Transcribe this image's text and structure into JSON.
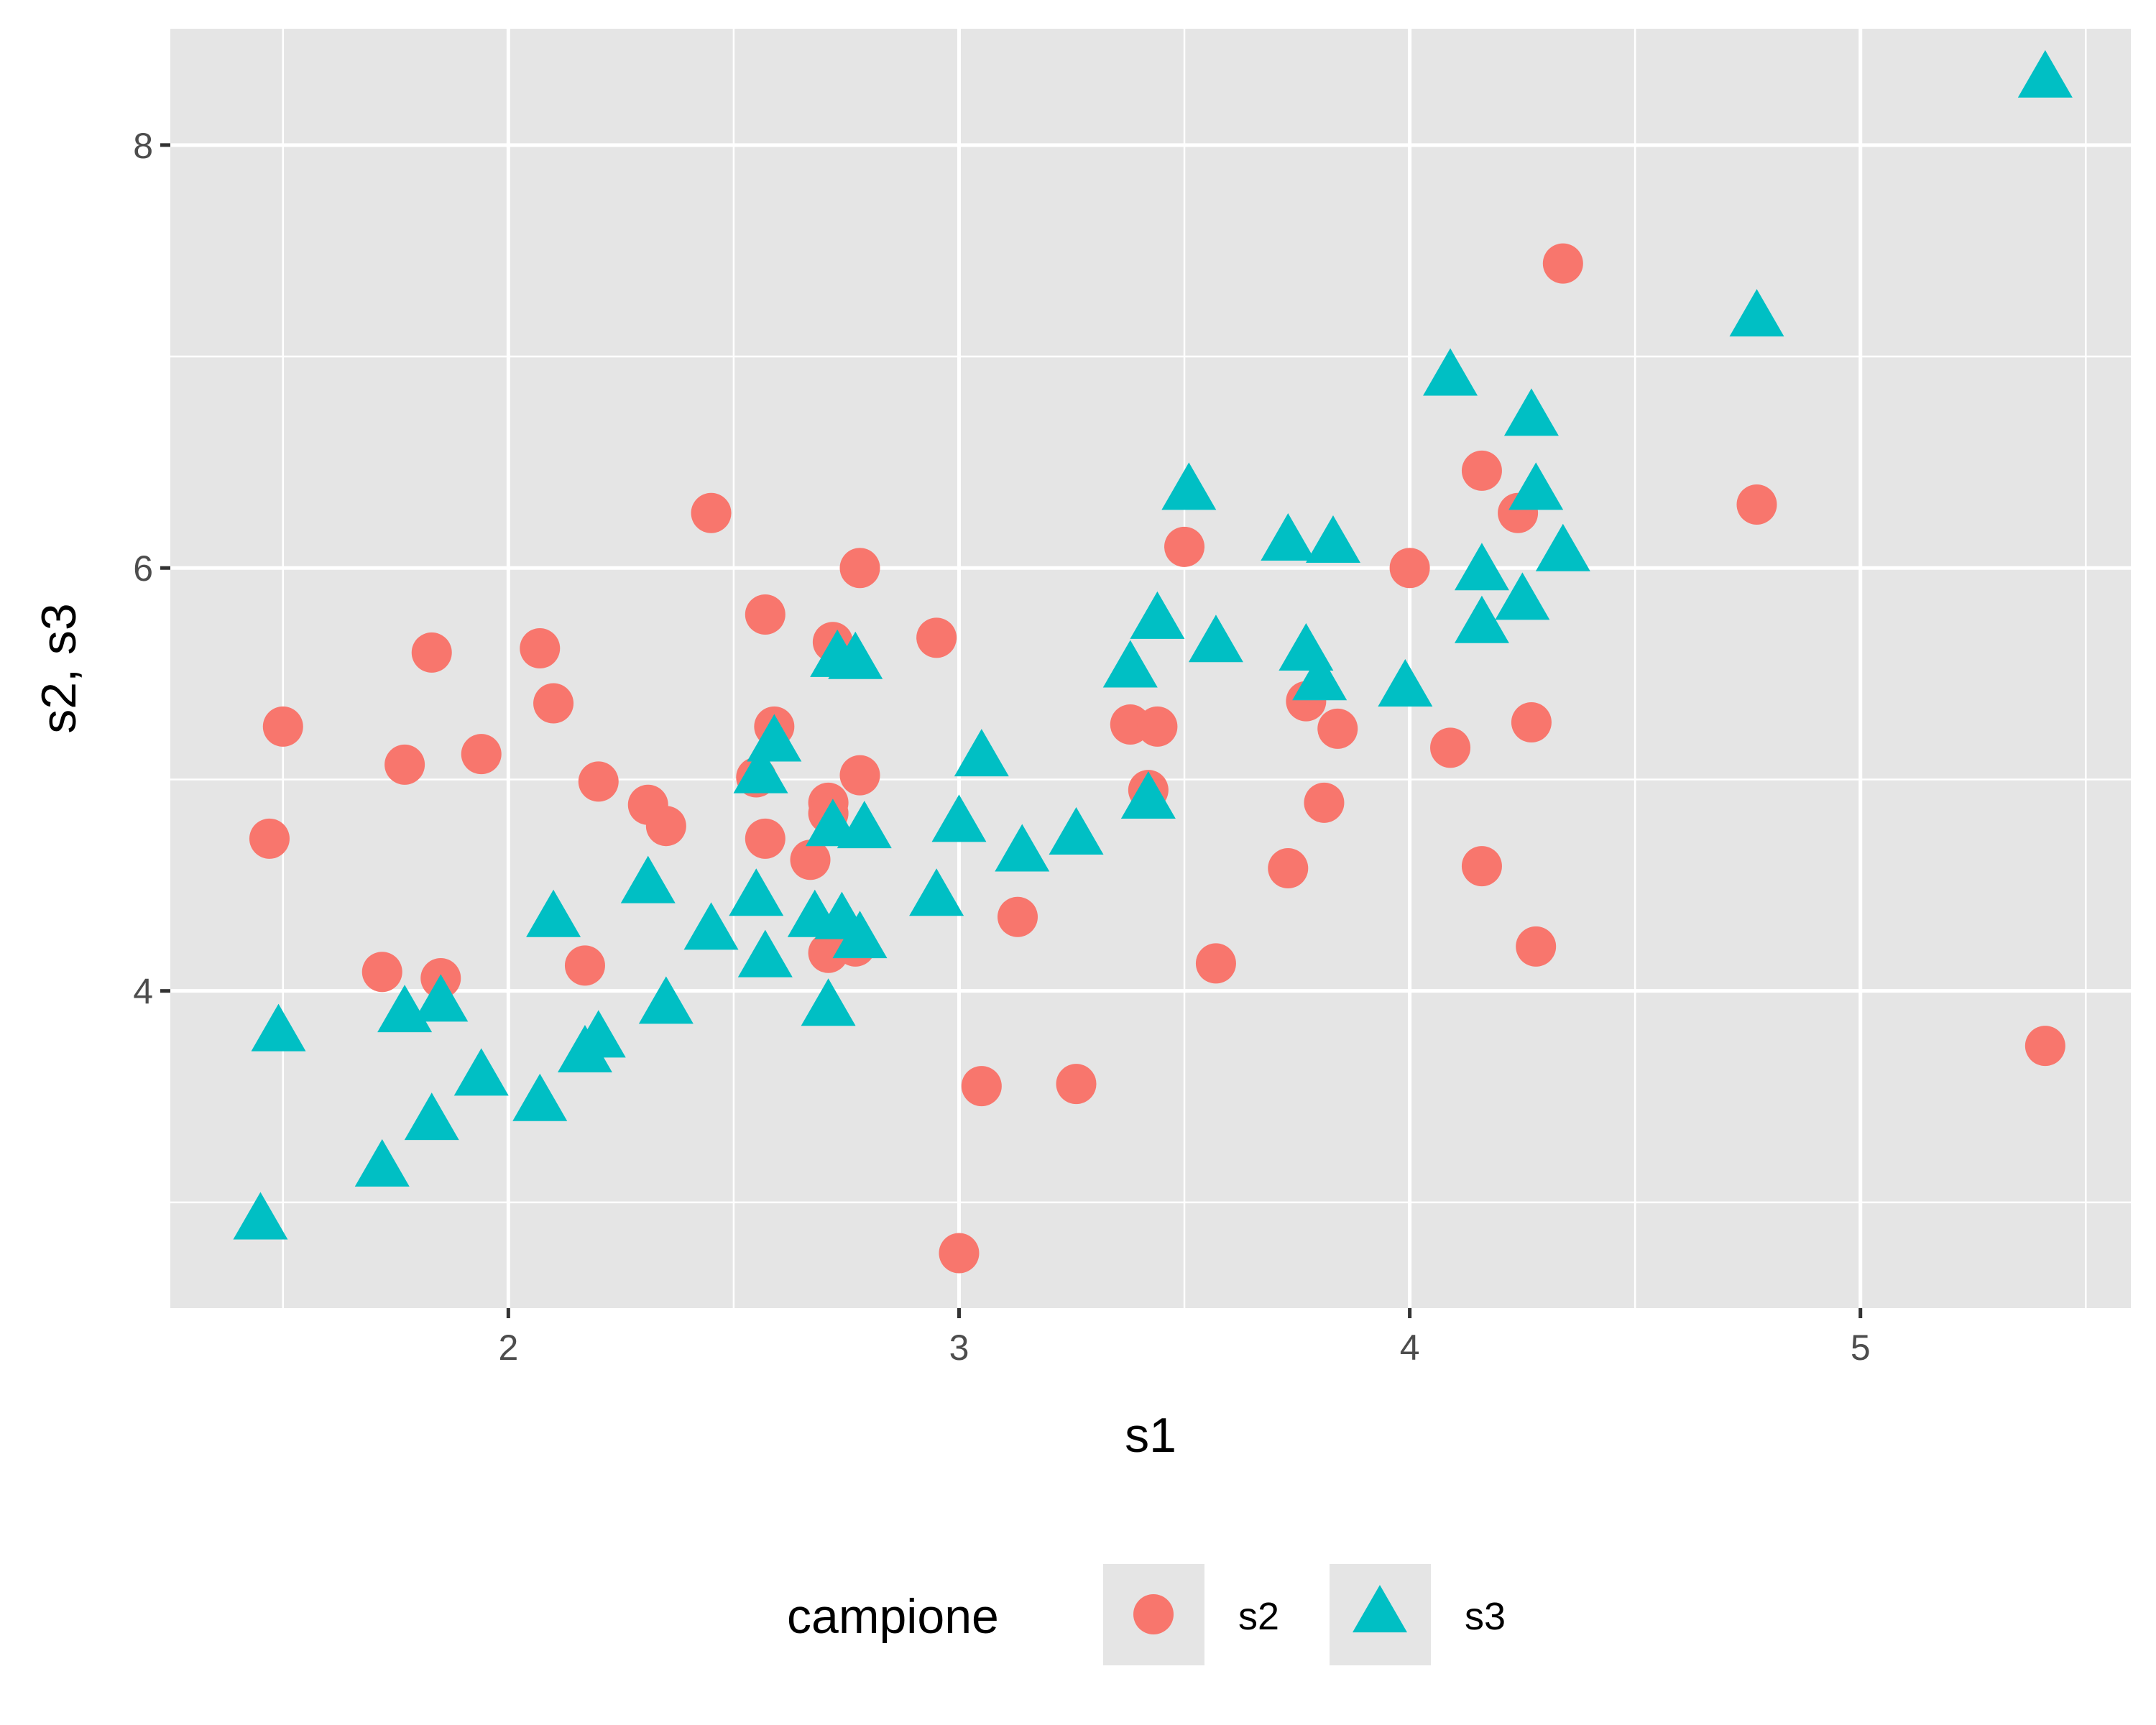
{
  "chart_data": {
    "type": "scatter",
    "xlabel": "s1",
    "ylabel": "s2, s3",
    "xlim": [
      1.25,
      5.6
    ],
    "ylim": [
      2.5,
      8.55
    ],
    "x_ticks": [
      2,
      3,
      4,
      5
    ],
    "y_ticks": [
      4,
      6,
      8
    ],
    "grid": true,
    "background": "#e5e5e5",
    "legend": {
      "title": "campione",
      "position": "bottom",
      "entries": [
        {
          "label": "s2",
          "shape": "circle",
          "color": "#f8766d"
        },
        {
          "label": "s3",
          "shape": "triangle",
          "color": "#00bfc4"
        }
      ]
    },
    "series": [
      {
        "name": "s2",
        "shape": "circle",
        "color": "#f8766d",
        "points": [
          [
            1.47,
            4.72
          ],
          [
            1.5,
            5.25
          ],
          [
            1.72,
            4.09
          ],
          [
            1.77,
            5.07
          ],
          [
            1.83,
            5.6
          ],
          [
            1.85,
            4.06
          ],
          [
            1.94,
            5.12
          ],
          [
            2.07,
            5.62
          ],
          [
            2.1,
            5.36
          ],
          [
            2.17,
            4.12
          ],
          [
            2.2,
            4.99
          ],
          [
            2.31,
            4.88
          ],
          [
            2.35,
            4.78
          ],
          [
            2.45,
            6.26
          ],
          [
            2.55,
            5.01
          ],
          [
            2.57,
            5.78
          ],
          [
            2.57,
            4.72
          ],
          [
            2.59,
            5.25
          ],
          [
            2.67,
            4.62
          ],
          [
            2.71,
            4.89
          ],
          [
            2.71,
            4.84
          ],
          [
            2.72,
            5.65
          ],
          [
            2.71,
            4.18
          ],
          [
            2.78,
            6.0
          ],
          [
            2.78,
            5.02
          ],
          [
            2.77,
            4.21
          ],
          [
            2.95,
            5.67
          ],
          [
            3.0,
            2.76
          ],
          [
            3.05,
            3.55
          ],
          [
            3.13,
            4.35
          ],
          [
            3.26,
            3.56
          ],
          [
            3.38,
            5.26
          ],
          [
            3.42,
            4.95
          ],
          [
            3.44,
            5.25
          ],
          [
            3.5,
            6.1
          ],
          [
            3.57,
            4.13
          ],
          [
            3.73,
            4.58
          ],
          [
            3.77,
            5.37
          ],
          [
            3.81,
            4.89
          ],
          [
            3.84,
            5.24
          ],
          [
            4.0,
            6.0
          ],
          [
            4.09,
            5.15
          ],
          [
            4.16,
            6.46
          ],
          [
            4.16,
            4.59
          ],
          [
            4.24,
            6.26
          ],
          [
            4.27,
            5.27
          ],
          [
            4.28,
            4.21
          ],
          [
            4.34,
            7.44
          ],
          [
            4.77,
            6.3
          ],
          [
            5.41,
            3.74
          ]
        ]
      },
      {
        "name": "s3",
        "shape": "triangle",
        "color": "#00bfc4",
        "points": [
          [
            1.45,
            2.91
          ],
          [
            1.49,
            3.8
          ],
          [
            1.72,
            3.16
          ],
          [
            1.77,
            3.89
          ],
          [
            1.83,
            3.38
          ],
          [
            1.85,
            3.94
          ],
          [
            1.94,
            3.59
          ],
          [
            2.07,
            3.47
          ],
          [
            2.1,
            4.34
          ],
          [
            2.17,
            3.7
          ],
          [
            2.2,
            3.77
          ],
          [
            2.31,
            4.5
          ],
          [
            2.35,
            3.93
          ],
          [
            2.45,
            4.28
          ],
          [
            2.55,
            4.44
          ],
          [
            2.56,
            5.02
          ],
          [
            2.57,
            4.15
          ],
          [
            2.59,
            5.17
          ],
          [
            2.68,
            4.34
          ],
          [
            2.71,
            3.92
          ],
          [
            2.72,
            4.77
          ],
          [
            2.73,
            5.57
          ],
          [
            2.74,
            4.33
          ],
          [
            2.77,
            5.56
          ],
          [
            2.78,
            4.24
          ],
          [
            2.79,
            4.76
          ],
          [
            2.95,
            4.44
          ],
          [
            3.0,
            4.79
          ],
          [
            3.05,
            5.1
          ],
          [
            3.14,
            4.65
          ],
          [
            3.26,
            4.73
          ],
          [
            3.38,
            5.52
          ],
          [
            3.42,
            4.9
          ],
          [
            3.44,
            5.75
          ],
          [
            3.51,
            6.36
          ],
          [
            3.57,
            5.64
          ],
          [
            3.73,
            6.12
          ],
          [
            3.77,
            5.6
          ],
          [
            3.8,
            5.46
          ],
          [
            3.83,
            6.11
          ],
          [
            3.99,
            5.43
          ],
          [
            4.09,
            6.9
          ],
          [
            4.16,
            5.98
          ],
          [
            4.16,
            5.73
          ],
          [
            4.25,
            5.84
          ],
          [
            4.27,
            6.71
          ],
          [
            4.28,
            6.36
          ],
          [
            4.34,
            6.07
          ],
          [
            4.77,
            7.18
          ],
          [
            5.41,
            8.31
          ]
        ]
      }
    ]
  }
}
